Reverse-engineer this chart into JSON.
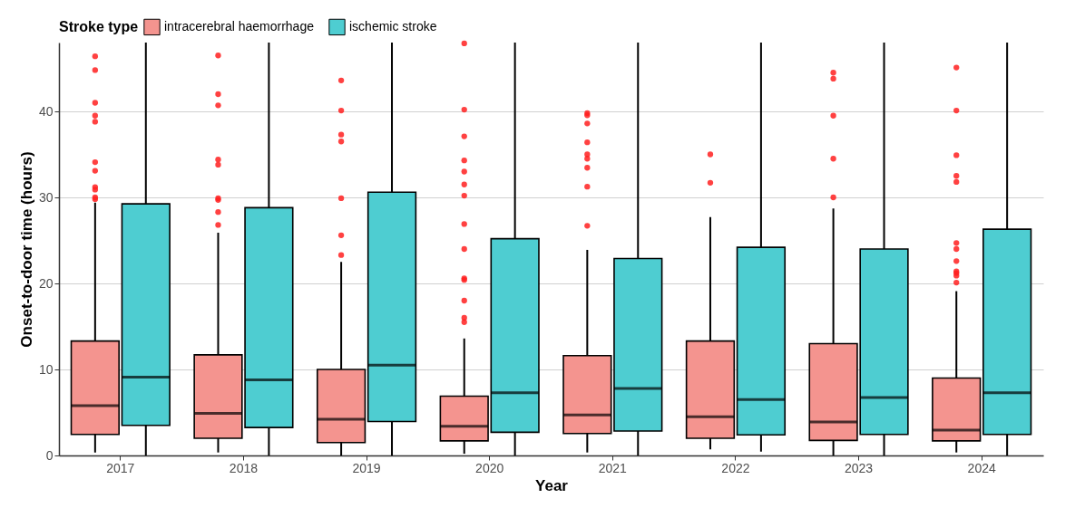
{
  "chart_data": {
    "type": "box",
    "xlabel": "Year",
    "ylabel": "Onset-to-door time (hours)",
    "legend_title": "Stroke type",
    "legend": "top",
    "grid": "y",
    "categories": [
      "2017",
      "2018",
      "2019",
      "2020",
      "2021",
      "2022",
      "2023",
      "2024"
    ],
    "ylim": [
      0,
      48
    ],
    "yticks": [
      0,
      10,
      20,
      30,
      40
    ],
    "series": [
      {
        "name": "intracerebral haemorrhage",
        "color": "#f4948f",
        "boxes": [
          {
            "low": 0.35,
            "q1": 2.45,
            "median": 5.8,
            "q3": 13.3,
            "high": 29.4,
            "outliers": [
              46.4,
              44.8,
              41.0,
              39.5,
              38.8,
              34.1,
              33.1,
              31.2,
              30.9,
              30.0,
              29.8
            ]
          },
          {
            "low": 0.35,
            "q1": 2.0,
            "median": 4.9,
            "q3": 11.7,
            "high": 25.9,
            "outliers": [
              46.5,
              42.0,
              40.7,
              34.4,
              33.8,
              29.9,
              29.7,
              28.3,
              26.8
            ]
          },
          {
            "low": 0,
            "q1": 1.5,
            "median": 4.2,
            "q3": 10.0,
            "high": 22.5,
            "outliers": [
              43.6,
              40.1,
              37.3,
              36.5,
              29.9,
              25.6,
              23.3
            ]
          },
          {
            "low": 0.2,
            "q1": 1.7,
            "median": 3.4,
            "q3": 6.9,
            "high": 13.6,
            "outliers": [
              47.9,
              40.2,
              37.1,
              34.3,
              33.0,
              31.5,
              30.2,
              26.9,
              24.0,
              20.6,
              20.4,
              18.0,
              16.0,
              15.5
            ]
          },
          {
            "low": 0.35,
            "q1": 2.55,
            "median": 4.7,
            "q3": 11.6,
            "high": 23.9,
            "outliers": [
              39.8,
              39.55,
              38.6,
              36.4,
              35.0,
              34.5,
              33.45,
              31.25,
              26.7
            ]
          },
          {
            "low": 0.7,
            "q1": 2.0,
            "median": 4.5,
            "q3": 13.3,
            "high": 27.7,
            "outliers": [
              35.0,
              31.7
            ]
          },
          {
            "low": 0,
            "q1": 1.75,
            "median": 3.9,
            "q3": 13.0,
            "high": 28.7,
            "outliers": [
              44.5,
              43.8,
              39.5,
              34.5,
              30.0
            ]
          },
          {
            "low": 0.35,
            "q1": 1.7,
            "median": 2.95,
            "q3": 9.0,
            "high": 19.1,
            "outliers": [
              45.1,
              40.1,
              34.9,
              32.5,
              31.8,
              24.7,
              24.0,
              22.6,
              21.4,
              21.2,
              20.9,
              20.1
            ]
          }
        ]
      },
      {
        "name": "ischemic stroke",
        "color": "#4ecdd1",
        "boxes": [
          {
            "low": 0,
            "q1": 3.5,
            "median": 9.1,
            "q3": 29.25,
            "high": 48
          },
          {
            "low": 0,
            "q1": 3.25,
            "median": 8.8,
            "q3": 28.8,
            "high": 48
          },
          {
            "low": 0,
            "q1": 3.95,
            "median": 10.5,
            "q3": 30.6,
            "high": 48
          },
          {
            "low": 0,
            "q1": 2.7,
            "median": 7.3,
            "q3": 25.2,
            "high": 48
          },
          {
            "low": 0,
            "q1": 2.85,
            "median": 7.8,
            "q3": 22.9,
            "high": 48
          },
          {
            "low": 0.45,
            "q1": 2.4,
            "median": 6.5,
            "q3": 24.2,
            "high": 48
          },
          {
            "low": 0,
            "q1": 2.45,
            "median": 6.75,
            "q3": 24.0,
            "high": 48
          },
          {
            "low": 0,
            "q1": 2.45,
            "median": 7.3,
            "q3": 26.3,
            "high": 48
          }
        ]
      }
    ]
  }
}
